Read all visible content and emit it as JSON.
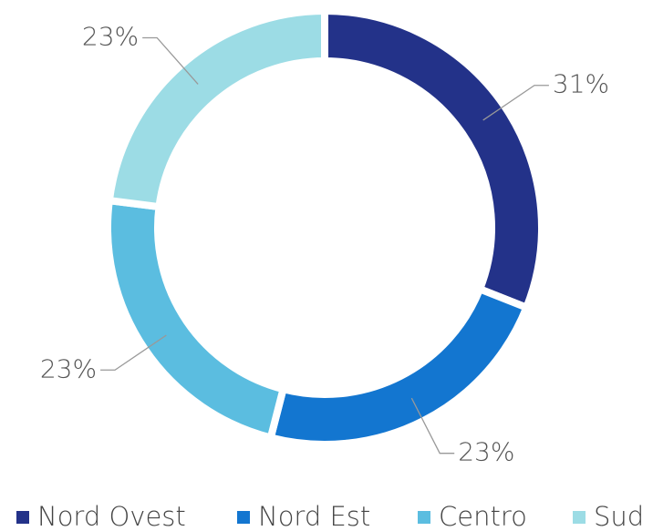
{
  "chart_data": {
    "type": "donut",
    "categories": [
      "Nord Ovest",
      "Nord Est",
      "Centro",
      "Sud"
    ],
    "values": [
      31,
      23,
      23,
      23
    ],
    "value_labels": [
      "31%",
      "23%",
      "23%",
      "23%"
    ],
    "colors": [
      "#233289",
      "#1376d0",
      "#5bbde0",
      "#9cdce5"
    ],
    "legend": "bottom"
  }
}
